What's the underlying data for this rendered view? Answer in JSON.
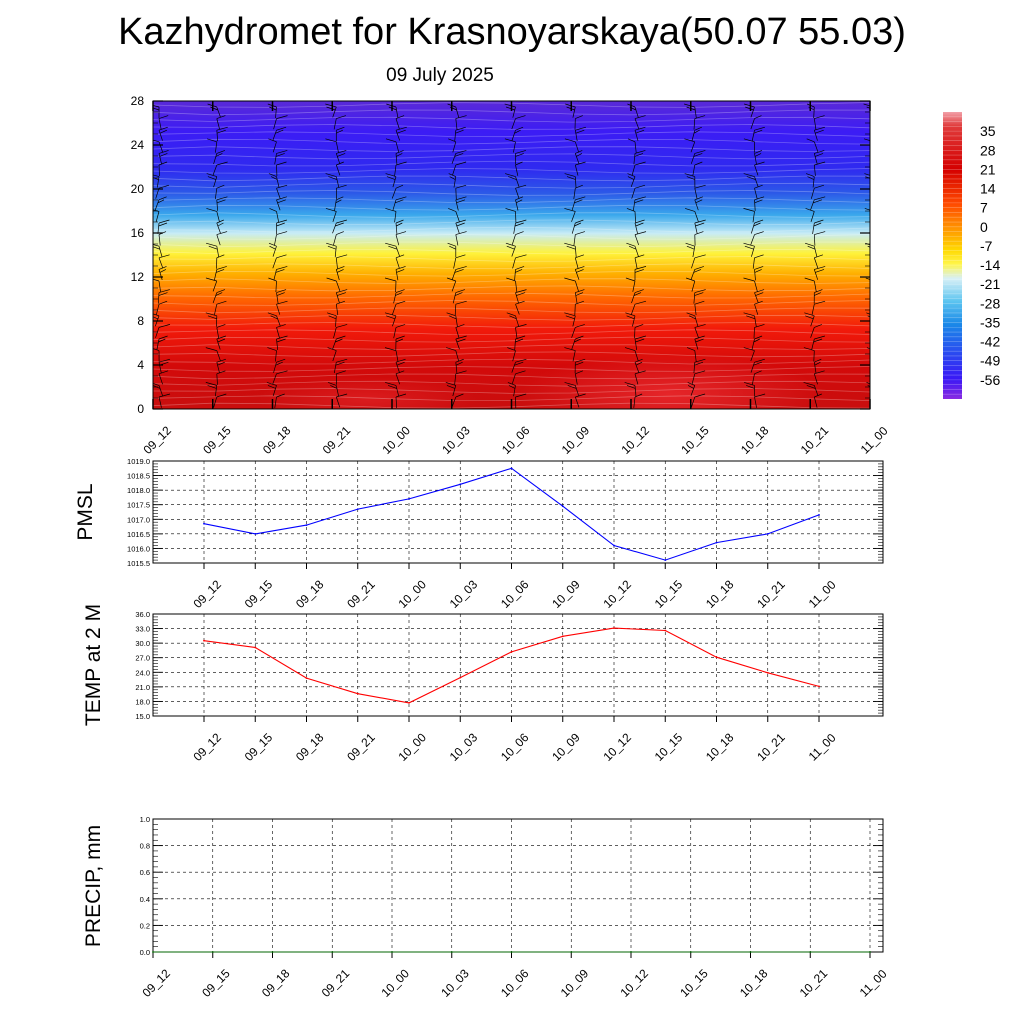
{
  "header": {
    "title": "Kazhydromet for Krasnoyarskaya(50.07 55.03)",
    "date": "09 July 2025"
  },
  "chart_data": [
    {
      "type": "heatmap",
      "title": "Kazhydromet for Krasnoyarskaya(50.07 55.03)",
      "subtitle": "09 July 2025",
      "x": [
        "09_12",
        "09_15",
        "09_18",
        "09_21",
        "10_00",
        "10_03",
        "10_06",
        "10_09",
        "10_12",
        "10_15",
        "10_18",
        "10_21",
        "11_00"
      ],
      "yticks": [
        0,
        4,
        8,
        12,
        16,
        20,
        24,
        28
      ],
      "ylim": [
        0,
        28
      ],
      "colorbar": {
        "labels": [
          "35",
          "28",
          "21",
          "14",
          "7",
          "0",
          "-7",
          "-14",
          "-21",
          "-28",
          "-35",
          "-42",
          "-49",
          "-56"
        ],
        "range": [
          -63,
          42
        ],
        "placement": "right"
      },
      "overlay": "wind-barbs",
      "colors": {
        "hot": "#d40000",
        "warm": "#ff8a00",
        "zero": "#fff23a",
        "cool": "#3bb8f0",
        "cold": "#3c2cff",
        "coldest": "#8a2be2"
      }
    },
    {
      "type": "line",
      "ylabel": "PMSL",
      "x": [
        "09_12",
        "09_15",
        "09_18",
        "09_21",
        "10_00",
        "10_03",
        "10_06",
        "10_09",
        "10_12",
        "10_15",
        "10_18",
        "10_21",
        "11_00"
      ],
      "values": [
        1016.85,
        1016.5,
        1016.8,
        1017.35,
        1017.7,
        1018.2,
        1018.75,
        1017.45,
        1016.1,
        1015.6,
        1016.2,
        1016.5,
        1017.15
      ],
      "ylim": [
        1015.5,
        1019.0
      ],
      "yticks": [
        "1015.5",
        "1016.0",
        "1016.5",
        "1017.0",
        "1017.5",
        "1018.0",
        "1018.5",
        "1019.0"
      ],
      "color": "#0000ff",
      "grid": true
    },
    {
      "type": "line",
      "ylabel": "TEMP at 2 M",
      "x": [
        "09_12",
        "09_15",
        "09_18",
        "09_21",
        "10_00",
        "10_03",
        "10_06",
        "10_09",
        "10_12",
        "10_15",
        "10_18",
        "10_21",
        "11_00"
      ],
      "values": [
        30.5,
        29.1,
        22.8,
        19.6,
        17.7,
        22.9,
        28.2,
        31.4,
        33.1,
        32.6,
        27.1,
        23.9,
        21.1
      ],
      "ylim": [
        15.0,
        36.0
      ],
      "yticks": [
        "15.0",
        "18.0",
        "21.0",
        "24.0",
        "27.0",
        "30.0",
        "33.0",
        "36.0"
      ],
      "color": "#ff0000",
      "grid": true
    },
    {
      "type": "line",
      "ylabel": "PRECIP, mm",
      "x": [
        "09_12",
        "09_15",
        "09_18",
        "09_21",
        "10_00",
        "10_03",
        "10_06",
        "10_09",
        "10_12",
        "10_15",
        "10_18",
        "10_21",
        "11_00"
      ],
      "values": [
        0,
        0,
        0,
        0,
        0,
        0,
        0,
        0,
        0,
        0,
        0,
        0,
        0
      ],
      "ylim": [
        0.0,
        1.0
      ],
      "yticks": [
        "0.0",
        "0.2",
        "0.4",
        "0.6",
        "0.8",
        "1.0"
      ],
      "color": "#006400",
      "grid": true
    }
  ]
}
